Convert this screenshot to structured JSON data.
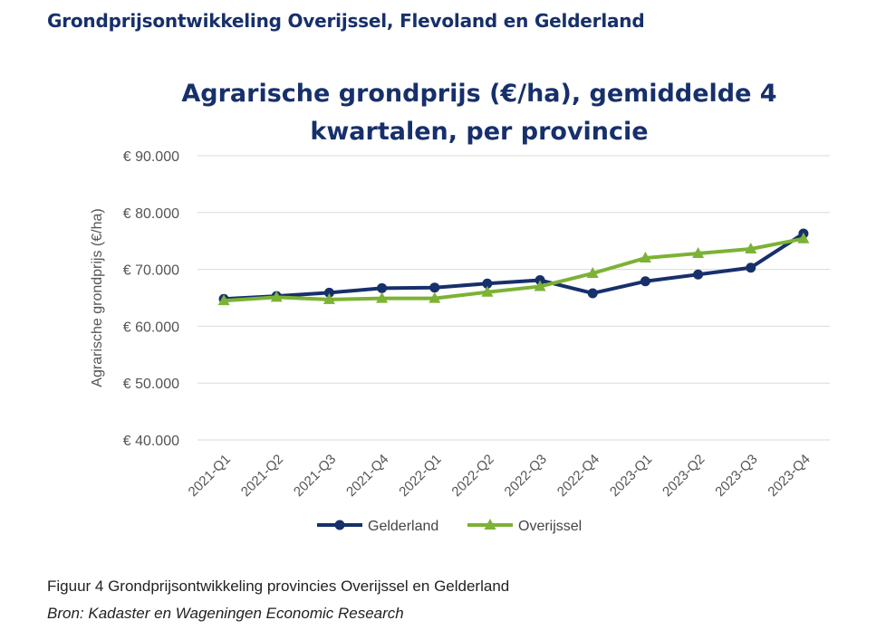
{
  "page": {
    "heading": "Grondprijsontwikkeling Overijssel, Flevoland en Gelderland",
    "caption": "Figuur 4 Grondprijsontwikkeling provincies Overijssel en Gelderland",
    "source": "Bron: Kadaster en Wageningen Economic Research"
  },
  "chart_data": {
    "type": "line",
    "title": "Agrarische grondprijs (€/ha), gemiddelde 4 kwartalen, per provincie",
    "title_lines": [
      "Agrarische grondprijs (€/ha), gemiddelde 4",
      "kwartalen, per provincie"
    ],
    "xlabel": "",
    "ylabel": "Agrarische grondprijs (€/ha)",
    "categories": [
      "2021-Q1",
      "2021-Q2",
      "2021-Q3",
      "2021-Q4",
      "2022-Q1",
      "2022-Q2",
      "2022-Q3",
      "2022-Q4",
      "2023-Q1",
      "2023-Q2",
      "2023-Q3",
      "2023-Q4"
    ],
    "ylim": [
      40000,
      90000
    ],
    "yticks": [
      90000,
      80000,
      70000,
      60000,
      50000,
      40000
    ],
    "ytick_labels": [
      "€ 90.000",
      "€ 80.000",
      "€ 70.000",
      "€ 60.000",
      "€ 50.000",
      "€ 40.000"
    ],
    "grid": true,
    "legend_position": "bottom",
    "series": [
      {
        "name": "Gelderland",
        "color": "#17306b",
        "marker": "circle",
        "values": [
          64800,
          65300,
          65900,
          66700,
          66800,
          67500,
          68100,
          65800,
          67900,
          69100,
          70300,
          76300
        ]
      },
      {
        "name": "Overijssel",
        "color": "#7cb235",
        "marker": "triangle",
        "values": [
          64500,
          65100,
          64700,
          64900,
          64900,
          66000,
          67000,
          69300,
          72000,
          72800,
          73600,
          75400
        ]
      }
    ]
  }
}
